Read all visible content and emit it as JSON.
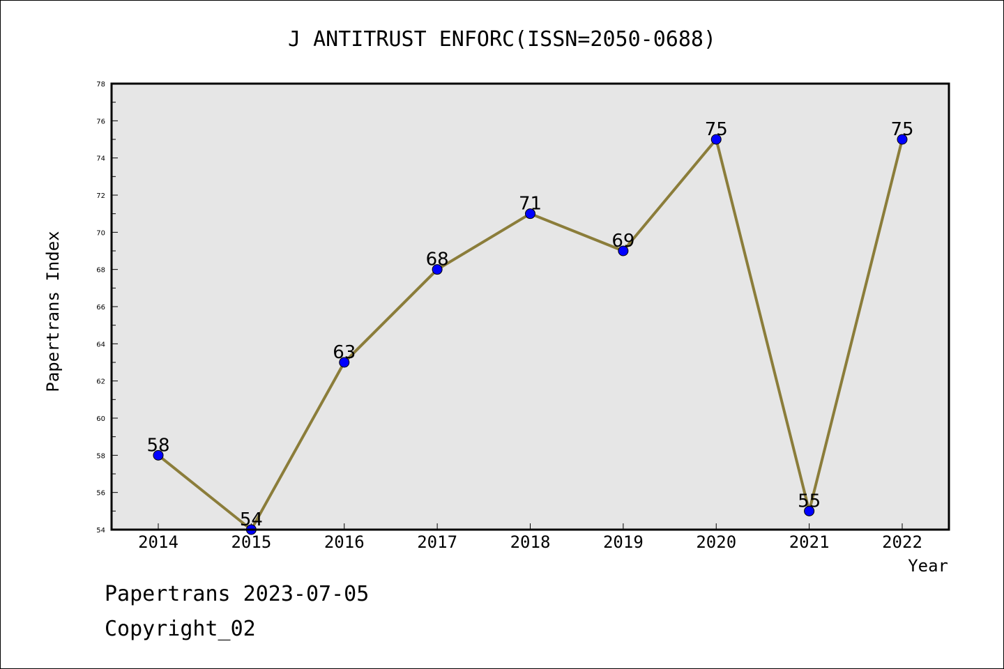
{
  "chart_data": {
    "type": "line",
    "title": "J ANTITRUST ENFORC(ISSN=2050-0688)",
    "xlabel": "Year",
    "ylabel": "Papertrans Index",
    "categories": [
      "2014",
      "2015",
      "2016",
      "2017",
      "2018",
      "2019",
      "2020",
      "2021",
      "2022"
    ],
    "series": [
      {
        "values": [
          58,
          54,
          63,
          68,
          71,
          69,
          75,
          55,
          75
        ]
      }
    ],
    "ylim": [
      54,
      78
    ],
    "yticks": [
      54,
      56,
      58,
      60,
      62,
      64,
      66,
      68,
      70,
      72,
      74,
      76,
      78
    ],
    "grid": false,
    "line_color": "#8b7d3a",
    "marker_color": "#0000ff",
    "plot_background": "#e6e6e6"
  },
  "footer": {
    "line1": "Papertrans 2023-07-05",
    "line2": "Copyright_02"
  }
}
